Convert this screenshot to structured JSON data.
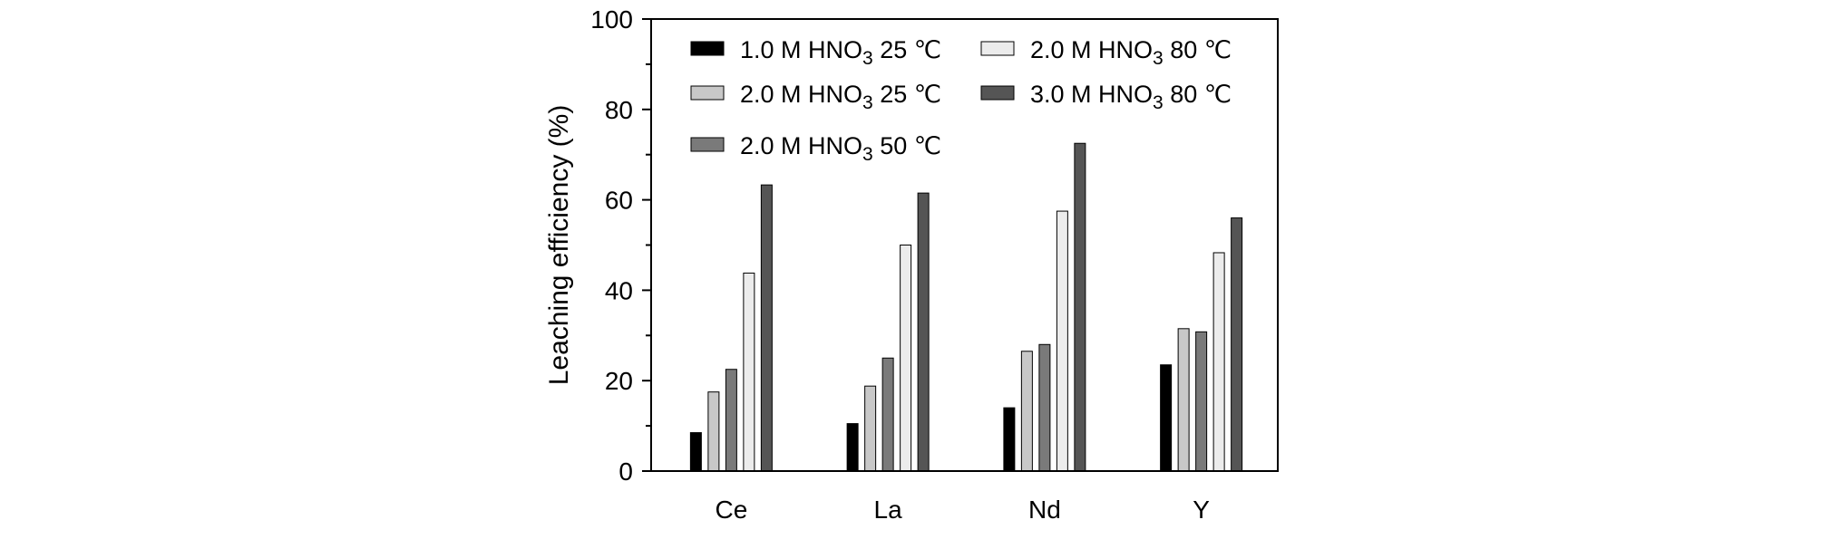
{
  "chart_data": {
    "type": "bar",
    "title": "",
    "xlabel": "",
    "ylabel": "Leaching efficiency (%)",
    "ylim": [
      0,
      100
    ],
    "yticks": [
      0,
      20,
      40,
      60,
      80,
      100
    ],
    "grid": false,
    "legend_position": "top-left",
    "categories": [
      "Ce",
      "La",
      "Nd",
      "Y"
    ],
    "series": [
      {
        "name": "1.0 M HNO3 25 ℃",
        "color": "#000000",
        "values": [
          8.5,
          10.5,
          14,
          23.5
        ]
      },
      {
        "name": "2.0 M HNO3 25 ℃",
        "color": "#c8c8c8",
        "values": [
          17.5,
          18.8,
          26.5,
          31.5
        ]
      },
      {
        "name": "2.0 M HNO3 50 ℃",
        "color": "#7a7a7a",
        "values": [
          22.5,
          25,
          28,
          30.8
        ]
      },
      {
        "name": "2.0 M HNO3 80 ℃",
        "color": "#ececec",
        "values": [
          43.8,
          50,
          57.5,
          48.3
        ]
      },
      {
        "name": "3.0 M HNO3 80 ℃",
        "color": "#555555",
        "values": [
          63.3,
          61.5,
          72.5,
          56
        ]
      }
    ]
  }
}
